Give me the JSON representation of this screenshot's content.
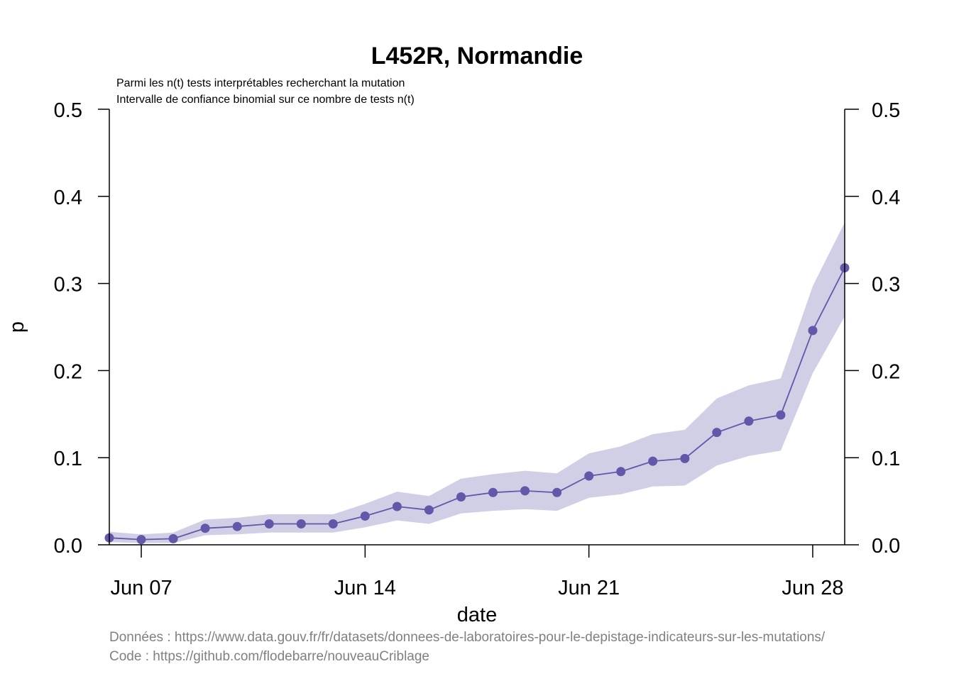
{
  "chart_data": {
    "type": "line",
    "title": "L452R, Normandie",
    "subtitle_lines": [
      "Parmi les n(t) tests interprétables recherchant la mutation",
      "Intervalle de confiance binomial sur ce nombre de tests n(t)"
    ],
    "xlabel": "date",
    "ylabel": "p",
    "ylim": [
      0,
      0.5
    ],
    "y_ticks": [
      "0.0",
      "0.1",
      "0.2",
      "0.3",
      "0.4",
      "0.5"
    ],
    "x_ticks": [
      {
        "date": "2021-06-07",
        "label": "Jun 07"
      },
      {
        "date": "2021-06-14",
        "label": "Jun 14"
      },
      {
        "date": "2021-06-21",
        "label": "Jun 21"
      },
      {
        "date": "2021-06-28",
        "label": "Jun 28"
      }
    ],
    "xlim": [
      "2021-06-06",
      "2021-06-29"
    ],
    "right_axis": true,
    "grid": false,
    "series": [
      {
        "color": "#6257a8",
        "band_color": "#d0cfe6",
        "points": [
          {
            "x": "2021-06-06",
            "y": 0.008,
            "lo": 0.003,
            "hi": 0.015
          },
          {
            "x": "2021-06-07",
            "y": 0.006,
            "lo": 0.002,
            "hi": 0.012
          },
          {
            "x": "2021-06-08",
            "y": 0.007,
            "lo": 0.002,
            "hi": 0.014
          },
          {
            "x": "2021-06-09",
            "y": 0.019,
            "lo": 0.011,
            "hi": 0.029
          },
          {
            "x": "2021-06-10",
            "y": 0.021,
            "lo": 0.012,
            "hi": 0.031
          },
          {
            "x": "2021-06-11",
            "y": 0.024,
            "lo": 0.014,
            "hi": 0.035
          },
          {
            "x": "2021-06-12",
            "y": 0.024,
            "lo": 0.014,
            "hi": 0.035
          },
          {
            "x": "2021-06-13",
            "y": 0.024,
            "lo": 0.014,
            "hi": 0.035
          },
          {
            "x": "2021-06-14",
            "y": 0.033,
            "lo": 0.02,
            "hi": 0.047
          },
          {
            "x": "2021-06-15",
            "y": 0.044,
            "lo": 0.028,
            "hi": 0.061
          },
          {
            "x": "2021-06-16",
            "y": 0.04,
            "lo": 0.024,
            "hi": 0.056
          },
          {
            "x": "2021-06-17",
            "y": 0.055,
            "lo": 0.036,
            "hi": 0.076
          },
          {
            "x": "2021-06-18",
            "y": 0.06,
            "lo": 0.039,
            "hi": 0.081
          },
          {
            "x": "2021-06-19",
            "y": 0.062,
            "lo": 0.041,
            "hi": 0.085
          },
          {
            "x": "2021-06-20",
            "y": 0.06,
            "lo": 0.039,
            "hi": 0.082
          },
          {
            "x": "2021-06-21",
            "y": 0.079,
            "lo": 0.054,
            "hi": 0.105
          },
          {
            "x": "2021-06-22",
            "y": 0.084,
            "lo": 0.058,
            "hi": 0.113
          },
          {
            "x": "2021-06-23",
            "y": 0.096,
            "lo": 0.067,
            "hi": 0.127
          },
          {
            "x": "2021-06-24",
            "y": 0.099,
            "lo": 0.068,
            "hi": 0.132
          },
          {
            "x": "2021-06-25",
            "y": 0.129,
            "lo": 0.091,
            "hi": 0.168
          },
          {
            "x": "2021-06-26",
            "y": 0.142,
            "lo": 0.102,
            "hi": 0.183
          },
          {
            "x": "2021-06-27",
            "y": 0.149,
            "lo": 0.108,
            "hi": 0.191
          },
          {
            "x": "2021-06-28",
            "y": 0.246,
            "lo": 0.197,
            "hi": 0.297
          },
          {
            "x": "2021-06-29",
            "y": 0.318,
            "lo": 0.262,
            "hi": 0.37
          }
        ]
      }
    ]
  },
  "captions": {
    "data_source": "Données : https://www.data.gouv.fr/fr/datasets/donnees-de-laboratoires-pour-le-depistage-indicateurs-sur-les-mutations/",
    "code_source": "Code : https://github.com/flodebarre/nouveauCriblage"
  }
}
